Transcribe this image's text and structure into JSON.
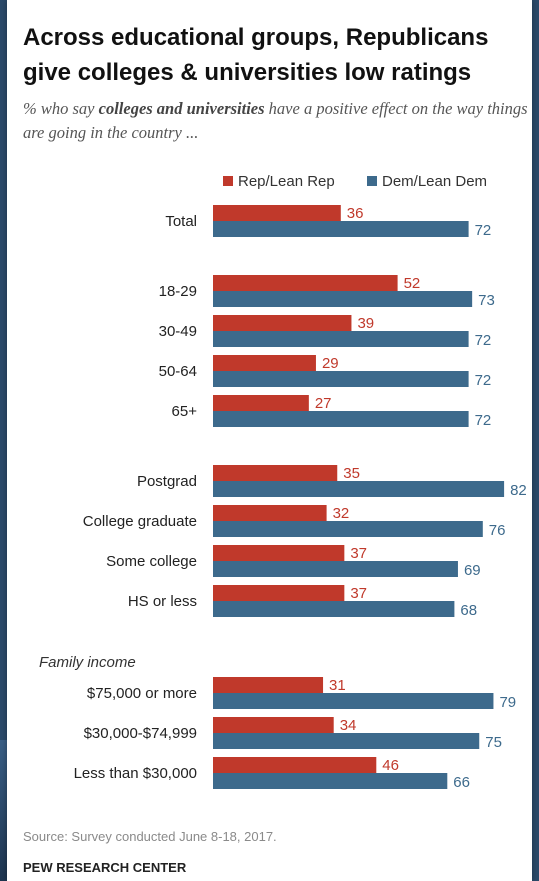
{
  "title": "Across educational groups, Republicans give colleges & universities low ratings",
  "subtitle": {
    "prefix": "% who say ",
    "emphasis": "colleges and universities",
    "suffix": " have a positive effect on the way things are going in the country ..."
  },
  "source": "Source: Survey conducted June 8-18, 2017.",
  "brand": "PEW RESEARCH CENTER",
  "colors": {
    "rep": "#c0392b",
    "dem": "#3d6a8c",
    "rep_label": "#c0392b",
    "dem_label": "#3d6a8c"
  },
  "chart_data": {
    "type": "bar",
    "orientation": "horizontal",
    "legend_position": "top-right",
    "series": [
      {
        "name": "Rep/Lean Rep",
        "color": "#c0392b"
      },
      {
        "name": "Dem/Lean Dem",
        "color": "#3d6a8c"
      }
    ],
    "groups": [
      {
        "label": "",
        "rows": [
          {
            "category": "Total",
            "rep": 36,
            "dem": 72
          }
        ]
      },
      {
        "label": "",
        "rows": [
          {
            "category": "18-29",
            "rep": 52,
            "dem": 73
          },
          {
            "category": "30-49",
            "rep": 39,
            "dem": 72
          },
          {
            "category": "50-64",
            "rep": 29,
            "dem": 72
          },
          {
            "category": "65+",
            "rep": 27,
            "dem": 72
          }
        ]
      },
      {
        "label": "",
        "rows": [
          {
            "category": "Postgrad",
            "rep": 35,
            "dem": 82
          },
          {
            "category": "College graduate",
            "rep": 32,
            "dem": 76
          },
          {
            "category": "Some college",
            "rep": 37,
            "dem": 69
          },
          {
            "category": "HS or less",
            "rep": 37,
            "dem": 68
          }
        ]
      },
      {
        "label": "Family income",
        "rows": [
          {
            "category": "$75,000 or more",
            "rep": 31,
            "dem": 79
          },
          {
            "category": "$30,000-$74,999",
            "rep": 34,
            "dem": 75
          },
          {
            "category": "Less than $30,000",
            "rep": 46,
            "dem": 66
          }
        ]
      }
    ]
  }
}
